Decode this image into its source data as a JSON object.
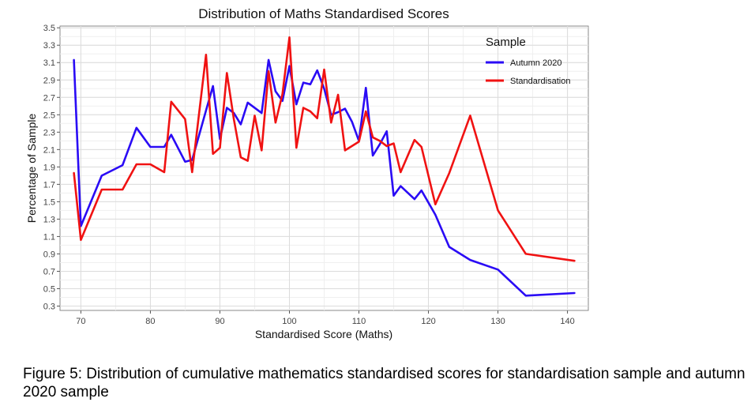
{
  "caption": "Figure 5: Distribution of cumulative mathematics standardised scores for standardisation sample and autumn 2020 sample",
  "chart_data": {
    "type": "line",
    "title": "Distribution of Maths Standardised Scores",
    "xlabel": "Standardised Score (Maths)",
    "ylabel": "Percentage of Sample",
    "xlim": [
      67,
      143
    ],
    "ylim": [
      0.25,
      3.52
    ],
    "xticks": [
      70,
      80,
      90,
      100,
      110,
      120,
      130,
      140
    ],
    "yticks": [
      0.3,
      0.5,
      0.7,
      0.9,
      1.1,
      1.3,
      1.5,
      1.7,
      1.9,
      2.1,
      2.3,
      2.5,
      2.7,
      2.9,
      3.1,
      3.3,
      3.5
    ],
    "ytick_labels": [
      "0.3",
      "0.5",
      "0.7",
      "0.9",
      "1.1",
      "1.3",
      "1.5",
      "1.7",
      "1.9",
      "2.1",
      "2.3",
      "2.5",
      "2.7",
      "2.9",
      "3.1",
      "3.3",
      "3.5"
    ],
    "grid": true,
    "legend": {
      "title": "Sample",
      "position": "top-right"
    },
    "series": [
      {
        "name": "Autumn 2020",
        "color": "#2a0bf5",
        "points": [
          [
            69,
            3.13
          ],
          [
            70,
            1.22
          ],
          [
            73,
            1.8
          ],
          [
            76,
            1.92
          ],
          [
            78,
            2.35
          ],
          [
            80,
            2.13
          ],
          [
            82,
            2.13
          ],
          [
            83,
            2.27
          ],
          [
            85,
            1.96
          ],
          [
            86,
            1.98
          ],
          [
            88,
            2.55
          ],
          [
            89,
            2.83
          ],
          [
            90,
            2.22
          ],
          [
            91,
            2.58
          ],
          [
            92,
            2.52
          ],
          [
            93,
            2.39
          ],
          [
            94,
            2.64
          ],
          [
            96,
            2.52
          ],
          [
            97,
            3.13
          ],
          [
            98,
            2.77
          ],
          [
            99,
            2.66
          ],
          [
            100,
            3.06
          ],
          [
            101,
            2.62
          ],
          [
            102,
            2.87
          ],
          [
            103,
            2.85
          ],
          [
            104,
            3.01
          ],
          [
            105,
            2.8
          ],
          [
            106,
            2.5
          ],
          [
            107,
            2.53
          ],
          [
            108,
            2.57
          ],
          [
            109,
            2.42
          ],
          [
            110,
            2.2
          ],
          [
            111,
            2.81
          ],
          [
            112,
            2.03
          ],
          [
            113,
            2.16
          ],
          [
            114,
            2.31
          ],
          [
            115,
            1.57
          ],
          [
            116,
            1.68
          ],
          [
            118,
            1.53
          ],
          [
            119,
            1.63
          ],
          [
            121,
            1.35
          ],
          [
            123,
            0.98
          ],
          [
            126,
            0.83
          ],
          [
            130,
            0.72
          ],
          [
            134,
            0.42
          ],
          [
            141,
            0.45
          ]
        ]
      },
      {
        "name": "Standardisation",
        "color": "#f01212",
        "points": [
          [
            69,
            1.83
          ],
          [
            70,
            1.06
          ],
          [
            73,
            1.64
          ],
          [
            76,
            1.64
          ],
          [
            78,
            1.93
          ],
          [
            80,
            1.93
          ],
          [
            82,
            1.84
          ],
          [
            83,
            2.65
          ],
          [
            85,
            2.45
          ],
          [
            86,
            1.84
          ],
          [
            88,
            3.19
          ],
          [
            89,
            2.05
          ],
          [
            90,
            2.12
          ],
          [
            91,
            2.98
          ],
          [
            92,
            2.45
          ],
          [
            93,
            2.01
          ],
          [
            94,
            1.97
          ],
          [
            95,
            2.49
          ],
          [
            96,
            2.09
          ],
          [
            97,
            3.0
          ],
          [
            98,
            2.41
          ],
          [
            99,
            2.74
          ],
          [
            100,
            3.39
          ],
          [
            101,
            2.12
          ],
          [
            102,
            2.58
          ],
          [
            103,
            2.54
          ],
          [
            104,
            2.46
          ],
          [
            105,
            3.02
          ],
          [
            106,
            2.41
          ],
          [
            107,
            2.73
          ],
          [
            108,
            2.09
          ],
          [
            109,
            2.14
          ],
          [
            110,
            2.19
          ],
          [
            111,
            2.54
          ],
          [
            112,
            2.24
          ],
          [
            113,
            2.2
          ],
          [
            114,
            2.14
          ],
          [
            115,
            2.17
          ],
          [
            116,
            1.84
          ],
          [
            118,
            2.21
          ],
          [
            119,
            2.13
          ],
          [
            121,
            1.47
          ],
          [
            123,
            1.83
          ],
          [
            126,
            2.49
          ],
          [
            130,
            1.4
          ],
          [
            134,
            0.9
          ],
          [
            141,
            0.82
          ]
        ]
      }
    ]
  }
}
